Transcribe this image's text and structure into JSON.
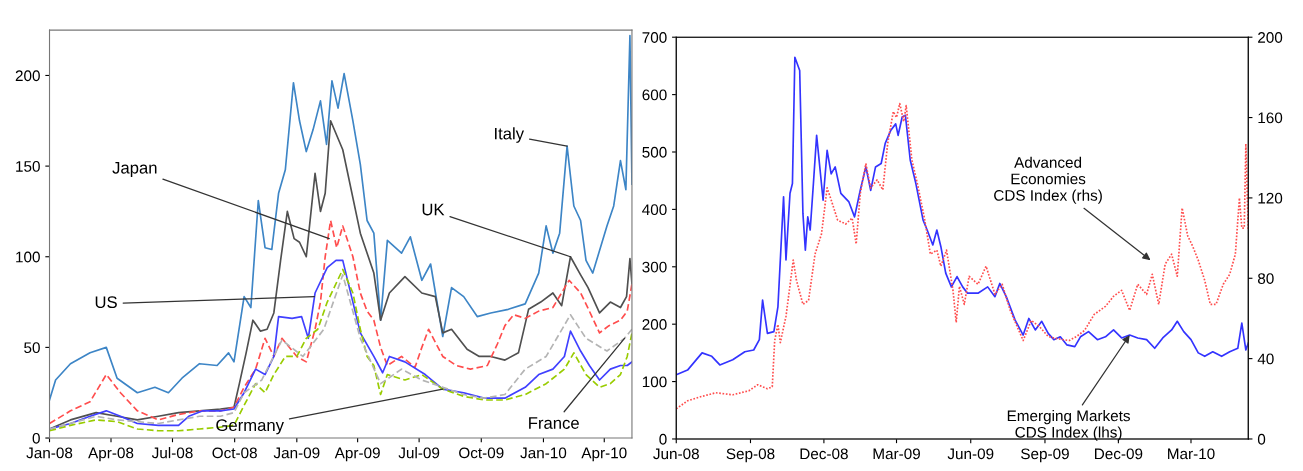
{
  "chart_data": [
    {
      "type": "line",
      "xlim": [
        "2008-01-01",
        "2010-05-12"
      ],
      "ylim": [
        0,
        225
      ],
      "xticks": [
        {
          "value": "2008-01-01",
          "label": "Jan-08"
        },
        {
          "value": "2008-04-01",
          "label": "Apr-08"
        },
        {
          "value": "2008-07-01",
          "label": "Jul-08"
        },
        {
          "value": "2008-10-01",
          "label": "Oct-08"
        },
        {
          "value": "2009-01-01",
          "label": "Jan-09"
        },
        {
          "value": "2009-04-01",
          "label": "Apr-09"
        },
        {
          "value": "2009-07-01",
          "label": "Jul-09"
        },
        {
          "value": "2009-10-01",
          "label": "Oct-09"
        },
        {
          "value": "2010-01-01",
          "label": "Jan-10"
        },
        {
          "value": "2010-04-01",
          "label": "Apr-10"
        }
      ],
      "yticks": [
        0,
        50,
        100,
        150,
        200
      ],
      "grid": false,
      "series": [
        {
          "color": "#3d85c6",
          "line_style": "solid",
          "x": [
            "2008-01-01",
            "2008-01-10",
            "2008-02-01",
            "2008-03-01",
            "2008-03-25",
            "2008-04-10",
            "2008-05-10",
            "2008-06-05",
            "2008-06-25",
            "2008-07-15",
            "2008-08-10",
            "2008-09-05",
            "2008-09-22",
            "2008-09-30",
            "2008-10-15",
            "2008-10-25",
            "2008-11-05",
            "2008-11-15",
            "2008-11-25",
            "2008-12-05",
            "2008-12-15",
            "2008-12-27",
            "2009-01-05",
            "2009-01-15",
            "2009-01-25",
            "2009-02-05",
            "2009-02-14",
            "2009-02-22",
            "2009-03-03",
            "2009-03-12",
            "2009-03-25",
            "2009-04-05",
            "2009-04-15",
            "2009-04-25",
            "2009-05-05",
            "2009-05-15",
            "2009-06-05",
            "2009-06-18",
            "2009-07-05",
            "2009-07-18",
            "2009-08-05",
            "2009-08-18",
            "2009-09-05",
            "2009-09-25",
            "2009-10-15",
            "2009-11-10",
            "2009-12-05",
            "2009-12-25",
            "2010-01-05",
            "2010-01-15",
            "2010-01-25",
            "2010-02-05",
            "2010-02-15",
            "2010-02-25",
            "2010-03-05",
            "2010-03-15",
            "2010-04-05",
            "2010-04-15",
            "2010-04-25",
            "2010-05-03",
            "2010-05-09",
            "2010-05-12"
          ],
          "values": [
            21,
            32,
            41,
            47,
            50,
            33,
            25,
            28,
            25,
            33,
            41,
            40,
            47,
            42,
            78,
            72,
            131,
            105,
            104,
            135,
            148,
            196,
            175,
            158,
            170,
            186,
            162,
            197,
            182,
            201,
            175,
            151,
            120,
            113,
            65,
            109,
            102,
            111,
            87,
            96,
            56,
            83,
            78,
            67,
            69,
            71,
            74,
            91,
            117,
            102,
            113,
            161,
            128,
            120,
            98,
            91,
            117,
            128,
            153,
            137,
            222,
            140
          ]
        },
        {
          "color": "#505050",
          "line_style": "solid",
          "x": [
            "2008-01-01",
            "2008-02-01",
            "2008-03-10",
            "2008-04-10",
            "2008-05-10",
            "2008-06-10",
            "2008-07-10",
            "2008-08-10",
            "2008-09-10",
            "2008-09-30",
            "2008-10-08",
            "2008-10-18",
            "2008-10-28",
            "2008-11-08",
            "2008-11-18",
            "2008-11-28",
            "2008-12-08",
            "2008-12-18",
            "2008-12-28",
            "2009-01-05",
            "2009-01-15",
            "2009-01-28",
            "2009-02-05",
            "2009-02-12",
            "2009-02-20",
            "2009-03-10",
            "2009-04-05",
            "2009-04-25",
            "2009-05-05",
            "2009-05-18",
            "2009-06-10",
            "2009-07-05",
            "2009-07-25",
            "2009-08-05",
            "2009-08-18",
            "2009-09-10",
            "2009-09-28",
            "2009-10-15",
            "2009-11-05",
            "2009-11-25",
            "2009-12-10",
            "2009-12-28",
            "2010-01-15",
            "2010-01-28",
            "2010-02-10",
            "2010-02-25",
            "2010-03-08",
            "2010-03-25",
            "2010-04-10",
            "2010-04-25",
            "2010-05-04",
            "2010-05-09",
            "2010-05-12"
          ],
          "values": [
            5,
            10,
            14,
            12,
            10,
            12,
            14,
            15,
            16,
            17,
            30,
            47,
            65,
            59,
            60,
            69,
            98,
            125,
            110,
            108,
            100,
            146,
            125,
            135,
            175,
            159,
            113,
            91,
            65,
            80,
            89,
            80,
            78,
            58,
            60,
            49,
            45,
            45,
            43,
            47,
            71,
            75,
            80,
            73,
            100,
            90,
            83,
            69,
            75,
            72,
            78,
            99,
            85
          ]
        },
        {
          "color": "#ff4d4d",
          "line_style": "dashed",
          "x": [
            "2008-01-01",
            "2008-02-01",
            "2008-03-01",
            "2008-03-25",
            "2008-04-15",
            "2008-05-10",
            "2008-06-10",
            "2008-07-10",
            "2008-08-10",
            "2008-09-10",
            "2008-09-30",
            "2008-10-15",
            "2008-11-01",
            "2008-11-15",
            "2008-11-28",
            "2008-12-10",
            "2009-01-01",
            "2009-01-15",
            "2009-01-28",
            "2009-02-05",
            "2009-02-12",
            "2009-02-20",
            "2009-03-01",
            "2009-03-10",
            "2009-03-25",
            "2009-04-05",
            "2009-04-15",
            "2009-04-25",
            "2009-05-05",
            "2009-05-15",
            "2009-06-05",
            "2009-06-25",
            "2009-07-05",
            "2009-07-15",
            "2009-08-05",
            "2009-08-25",
            "2009-09-15",
            "2009-10-10",
            "2009-10-25",
            "2009-11-05",
            "2009-11-18",
            "2009-12-05",
            "2009-12-25",
            "2010-01-15",
            "2010-02-08",
            "2010-02-25",
            "2010-03-10",
            "2010-03-25",
            "2010-04-08",
            "2010-04-25",
            "2010-05-05",
            "2010-05-12"
          ],
          "values": [
            8,
            15,
            20,
            35,
            25,
            15,
            10,
            13,
            15,
            15,
            17,
            28,
            38,
            55,
            45,
            55,
            45,
            42,
            60,
            75,
            100,
            120,
            105,
            117,
            100,
            80,
            70,
            65,
            50,
            40,
            45,
            39,
            50,
            60,
            45,
            40,
            38,
            40,
            52,
            62,
            68,
            66,
            70,
            72,
            87,
            80,
            70,
            58,
            62,
            65,
            70,
            85
          ]
        },
        {
          "color": "#4040ff",
          "line_style": "solid",
          "x": [
            "2008-01-01",
            "2008-02-01",
            "2008-03-01",
            "2008-03-25",
            "2008-04-15",
            "2008-05-10",
            "2008-06-10",
            "2008-07-10",
            "2008-07-25",
            "2008-08-15",
            "2008-09-10",
            "2008-09-30",
            "2008-10-15",
            "2008-11-01",
            "2008-11-15",
            "2008-11-28",
            "2008-12-05",
            "2008-12-25",
            "2009-01-08",
            "2009-01-18",
            "2009-01-28",
            "2009-02-15",
            "2009-02-28",
            "2009-03-10",
            "2009-04-05",
            "2009-04-25",
            "2009-05-08",
            "2009-05-18",
            "2009-06-10",
            "2009-07-10",
            "2009-08-05",
            "2009-09-05",
            "2009-10-05",
            "2009-11-05",
            "2009-12-05",
            "2009-12-25",
            "2010-01-15",
            "2010-02-01",
            "2010-02-10",
            "2010-02-25",
            "2010-03-10",
            "2010-03-25",
            "2010-04-10",
            "2010-04-25",
            "2010-05-05",
            "2010-05-12"
          ],
          "values": [
            5,
            8,
            12,
            15,
            12,
            8,
            7,
            7,
            12,
            15,
            15,
            16,
            25,
            38,
            35,
            45,
            67,
            66,
            67,
            55,
            80,
            94,
            98,
            98,
            58,
            45,
            36,
            45,
            42,
            35,
            27,
            25,
            22,
            22,
            28,
            35,
            38,
            45,
            59,
            48,
            40,
            32,
            38,
            40,
            40,
            42
          ]
        },
        {
          "color": "#99cc00",
          "line_style": "dashed",
          "x": [
            "2008-01-01",
            "2008-02-01",
            "2008-03-10",
            "2008-04-10",
            "2008-05-10",
            "2008-06-10",
            "2008-07-10",
            "2008-08-10",
            "2008-09-10",
            "2008-09-30",
            "2008-10-15",
            "2008-11-01",
            "2008-11-15",
            "2008-11-28",
            "2008-12-15",
            "2009-01-01",
            "2009-01-15",
            "2009-02-01",
            "2009-02-15",
            "2009-03-10",
            "2009-03-25",
            "2009-04-05",
            "2009-04-15",
            "2009-04-25",
            "2009-05-05",
            "2009-05-15",
            "2009-06-10",
            "2009-07-05",
            "2009-08-05",
            "2009-09-05",
            "2009-10-05",
            "2009-11-05",
            "2009-12-05",
            "2010-01-05",
            "2010-02-01",
            "2010-02-15",
            "2010-03-05",
            "2010-03-25",
            "2010-04-10",
            "2010-04-25",
            "2010-05-05",
            "2010-05-12"
          ],
          "values": [
            4,
            7,
            10,
            9,
            5,
            4,
            4,
            5,
            6,
            7,
            18,
            30,
            25,
            35,
            45,
            45,
            55,
            60,
            75,
            93,
            80,
            60,
            45,
            40,
            24,
            35,
            32,
            35,
            27,
            23,
            21,
            21,
            24,
            30,
            38,
            47,
            35,
            28,
            30,
            35,
            45,
            58
          ]
        },
        {
          "color": "#b4b4b4",
          "line_style": "dashed",
          "x": [
            "2008-01-01",
            "2008-03-10",
            "2008-04-10",
            "2008-06-10",
            "2008-07-10",
            "2008-08-10",
            "2008-09-10",
            "2008-09-30",
            "2008-10-15",
            "2008-11-10",
            "2008-12-10",
            "2009-01-10",
            "2009-02-10",
            "2009-03-10",
            "2009-04-05",
            "2009-05-05",
            "2009-06-05",
            "2009-07-05",
            "2009-08-05",
            "2009-09-05",
            "2009-10-05",
            "2009-11-05",
            "2009-12-05",
            "2010-01-05",
            "2010-02-10",
            "2010-03-05",
            "2010-04-05",
            "2010-05-01",
            "2010-05-12"
          ],
          "values": [
            5,
            12,
            10,
            8,
            10,
            12,
            12,
            14,
            25,
            32,
            54,
            45,
            60,
            90,
            55,
            30,
            38,
            32,
            28,
            24,
            22,
            24,
            38,
            45,
            68,
            55,
            48,
            55,
            60
          ]
        }
      ],
      "annotations": [
        {
          "text": "Japan",
          "x": "2009-02-18",
          "y": 110
        },
        {
          "text": "US",
          "x": "2009-01-27",
          "y": 78
        },
        {
          "text": "Germany",
          "x": "2009-08-05",
          "y": 27
        },
        {
          "text": "Italy",
          "x": "2010-02-05",
          "y": 161
        },
        {
          "text": "UK",
          "x": "2010-02-10",
          "y": 100
        },
        {
          "text": "France",
          "x": "2010-05-01",
          "y": 55
        }
      ]
    },
    {
      "type": "line",
      "xlim": [
        "2008-06-01",
        "2010-05-11"
      ],
      "ylim": [
        0,
        700
      ],
      "y2lim": [
        0,
        200
      ],
      "xticks": [
        {
          "value": "2008-06-01",
          "label": "Jun-08"
        },
        {
          "value": "2008-09-01",
          "label": "Sep-08"
        },
        {
          "value": "2008-12-01",
          "label": "Dec-08"
        },
        {
          "value": "2009-03-01",
          "label": "Mar-09"
        },
        {
          "value": "2009-06-01",
          "label": "Jun-09"
        },
        {
          "value": "2009-09-01",
          "label": "Sep-09"
        },
        {
          "value": "2009-12-01",
          "label": "Dec-09"
        },
        {
          "value": "2010-03-01",
          "label": "Mar-10"
        }
      ],
      "yticks": [
        0,
        100,
        200,
        300,
        400,
        500,
        600,
        700
      ],
      "y2ticks": [
        0,
        40,
        80,
        120,
        160,
        200
      ],
      "grid": false,
      "series": [
        {
          "color": "#3333ff",
          "line_style": "solid",
          "x": [
            "2008-06-01",
            "2008-06-15",
            "2008-07-03",
            "2008-07-15",
            "2008-07-25",
            "2008-08-10",
            "2008-08-25",
            "2008-09-05",
            "2008-09-12",
            "2008-09-16",
            "2008-09-22",
            "2008-09-30",
            "2008-10-05",
            "2008-10-12",
            "2008-10-15",
            "2008-10-20",
            "2008-10-23",
            "2008-10-26",
            "2008-11-01",
            "2008-11-05",
            "2008-11-08",
            "2008-11-11",
            "2008-11-14",
            "2008-11-18",
            "2008-11-22",
            "2008-11-30",
            "2008-12-05",
            "2008-12-10",
            "2008-12-15",
            "2008-12-22",
            "2009-01-01",
            "2009-01-08",
            "2009-01-15",
            "2009-01-22",
            "2009-01-28",
            "2009-02-03",
            "2009-02-10",
            "2009-02-15",
            "2009-02-22",
            "2009-02-28",
            "2009-03-03",
            "2009-03-08",
            "2009-03-12",
            "2009-03-18",
            "2009-03-25",
            "2009-04-03",
            "2009-04-08",
            "2009-04-15",
            "2009-04-20",
            "2009-04-25",
            "2009-05-01",
            "2009-05-08",
            "2009-05-15",
            "2009-05-22",
            "2009-05-28",
            "2009-06-10",
            "2009-06-22",
            "2009-07-01",
            "2009-07-07",
            "2009-07-15",
            "2009-07-26",
            "2009-08-05",
            "2009-08-12",
            "2009-08-20",
            "2009-08-28",
            "2009-09-05",
            "2009-09-12",
            "2009-09-20",
            "2009-09-28",
            "2009-10-08",
            "2009-10-15",
            "2009-10-25",
            "2009-11-05",
            "2009-11-15",
            "2009-11-25",
            "2009-12-05",
            "2009-12-15",
            "2009-12-25",
            "2010-01-05",
            "2010-01-15",
            "2010-01-25",
            "2010-02-05",
            "2010-02-12",
            "2010-02-20",
            "2010-03-01",
            "2010-03-10",
            "2010-03-18",
            "2010-03-28",
            "2010-04-08",
            "2010-04-18",
            "2010-04-28",
            "2010-05-03",
            "2010-05-08",
            "2010-05-11"
          ],
          "values": [
            112,
            120,
            150,
            144,
            129,
            138,
            152,
            155,
            173,
            242,
            184,
            187,
            230,
            422,
            312,
            428,
            445,
            665,
            642,
            393,
            329,
            387,
            364,
            445,
            529,
            416,
            503,
            462,
            474,
            428,
            413,
            387,
            433,
            474,
            433,
            474,
            480,
            515,
            538,
            549,
            529,
            561,
            564,
            486,
            445,
            381,
            364,
            338,
            364,
            335,
            289,
            265,
            283,
            265,
            254,
            254,
            265,
            248,
            271,
            248,
            207,
            181,
            210,
            190,
            205,
            184,
            173,
            178,
            164,
            161,
            178,
            187,
            173,
            178,
            190,
            176,
            181,
            176,
            173,
            158,
            176,
            190,
            205,
            187,
            173,
            150,
            144,
            152,
            144,
            152,
            158,
            202,
            155,
            167
          ]
        },
        {
          "color": "#ff4d4d",
          "line_style": "dotted",
          "axis": "y2",
          "x": [
            "2008-06-01",
            "2008-06-15",
            "2008-07-01",
            "2008-07-20",
            "2008-08-10",
            "2008-08-30",
            "2008-09-10",
            "2008-09-22",
            "2008-09-28",
            "2008-10-01",
            "2008-10-05",
            "2008-10-08",
            "2008-10-15",
            "2008-10-24",
            "2008-10-28",
            "2008-11-05",
            "2008-11-12",
            "2008-11-20",
            "2008-11-28",
            "2008-12-05",
            "2008-12-10",
            "2008-12-18",
            "2008-12-28",
            "2009-01-05",
            "2009-01-10",
            "2009-01-15",
            "2009-01-22",
            "2009-01-28",
            "2009-02-05",
            "2009-02-12",
            "2009-02-18",
            "2009-02-25",
            "2009-03-01",
            "2009-03-05",
            "2009-03-10",
            "2009-03-13",
            "2009-03-20",
            "2009-03-28",
            "2009-04-05",
            "2009-04-12",
            "2009-04-20",
            "2009-04-25",
            "2009-05-02",
            "2009-05-10",
            "2009-05-14",
            "2009-05-18",
            "2009-05-24",
            "2009-05-30",
            "2009-06-10",
            "2009-06-20",
            "2009-07-01",
            "2009-07-10",
            "2009-07-20",
            "2009-08-05",
            "2009-08-15",
            "2009-08-25",
            "2009-09-05",
            "2009-09-15",
            "2009-10-01",
            "2009-10-10",
            "2009-10-20",
            "2009-11-01",
            "2009-11-15",
            "2009-11-25",
            "2009-12-05",
            "2009-12-15",
            "2009-12-25",
            "2010-01-05",
            "2010-01-12",
            "2010-01-20",
            "2010-01-28",
            "2010-02-05",
            "2010-02-12",
            "2010-02-18",
            "2010-02-25",
            "2010-03-03",
            "2010-03-10",
            "2010-03-18",
            "2010-03-25",
            "2010-04-01",
            "2010-04-10",
            "2010-04-18",
            "2010-04-25",
            "2010-04-30",
            "2010-05-03",
            "2010-05-06",
            "2010-05-08",
            "2010-05-11"
          ],
          "values": [
            15,
            19,
            21,
            23,
            22,
            24,
            27,
            25,
            26,
            49,
            57,
            48,
            61,
            89,
            79,
            67,
            69,
            92,
            102,
            125,
            119,
            109,
            107,
            110,
            97,
            122,
            137,
            125,
            129,
            124,
            147,
            163,
            160,
            167,
            158,
            166,
            139,
            125,
            109,
            92,
            94,
            86,
            94,
            74,
            58,
            76,
            67,
            81,
            77,
            86,
            72,
            77,
            64,
            49,
            59,
            56,
            51,
            50,
            49,
            51,
            54,
            62,
            66,
            71,
            74,
            64,
            77,
            72,
            82,
            67,
            87,
            92,
            81,
            115,
            101,
            96,
            89,
            79,
            67,
            67,
            77,
            82,
            92,
            120,
            105,
            105,
            147,
            104
          ]
        }
      ],
      "annotations": [
        "Advanced\nEconomies\nCDS Index (rhs)",
        {
          "text": "Emerging Markets\nCDS Index (lhs)",
          "x": "2009-12-15",
          "y": 181
        }
      ]
    }
  ]
}
